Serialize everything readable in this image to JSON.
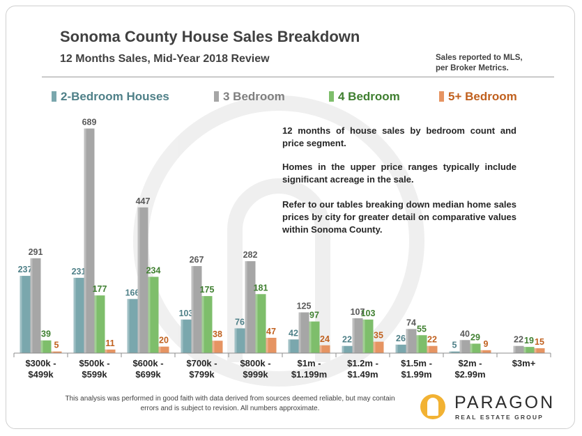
{
  "header": {
    "title": "Sonoma County House Sales Breakdown",
    "subtitle": "12 Months Sales, Mid-Year 2018 Review",
    "note_line1": "Sales reported to MLS,",
    "note_line2": "per Broker Metrics."
  },
  "description": {
    "p1": "12 months of house sales by bedroom count and price segment.",
    "p2": "Homes in the upper price ranges typically include significant acreage in the sale.",
    "p3": "Refer to our tables breaking down median home sales prices by city for greater detail on comparative values within Sonoma County."
  },
  "chart_data": {
    "type": "bar",
    "title": "Sonoma County House Sales Breakdown",
    "subtitle": "12 Months Sales, Mid-Year 2018 Review",
    "xlabel": "",
    "ylabel": "",
    "ylim": [
      0,
      720
    ],
    "grid": false,
    "legend_position": "top",
    "categories": [
      [
        "$300k -",
        "$499k"
      ],
      [
        "$500k -",
        "$599k"
      ],
      [
        "$600k -",
        "$699k"
      ],
      [
        "$700k -",
        "$799k"
      ],
      [
        "$800k -",
        "$999k"
      ],
      [
        "$1m -",
        "$1.199m"
      ],
      [
        "$1.2m -",
        "$1.49m"
      ],
      [
        "$1.5m -",
        "$1.99m"
      ],
      [
        "$2m -",
        "$2.99m"
      ],
      [
        "$3m+"
      ]
    ],
    "series": [
      {
        "name": "2-Bedroom Houses",
        "color": "#7aa7ad",
        "label_color": "#4f8088",
        "values": [
          237,
          231,
          166,
          103,
          76,
          42,
          22,
          26,
          5,
          null
        ]
      },
      {
        "name": "3 Bedroom",
        "color": "#a6a6a6",
        "label_color": "#595959",
        "values": [
          291,
          689,
          447,
          267,
          282,
          125,
          107,
          74,
          40,
          22
        ]
      },
      {
        "name": "4 Bedroom",
        "color": "#7ebe6b",
        "label_color": "#3f7f30",
        "values": [
          39,
          177,
          234,
          175,
          181,
          97,
          103,
          55,
          29,
          19
        ]
      },
      {
        "name": "5+ Bedroom",
        "color": "#e69462",
        "label_color": "#c0601e",
        "values": [
          5,
          11,
          20,
          38,
          47,
          24,
          35,
          22,
          9,
          15
        ]
      }
    ]
  },
  "footer": {
    "disclaimer": "This analysis was performed in good faith with data derived from sources deemed reliable, but may contain errors and is subject to revision.  All numbers approximate.",
    "logo_name": "PARAGON",
    "logo_tagline": "REAL ESTATE GROUP"
  }
}
